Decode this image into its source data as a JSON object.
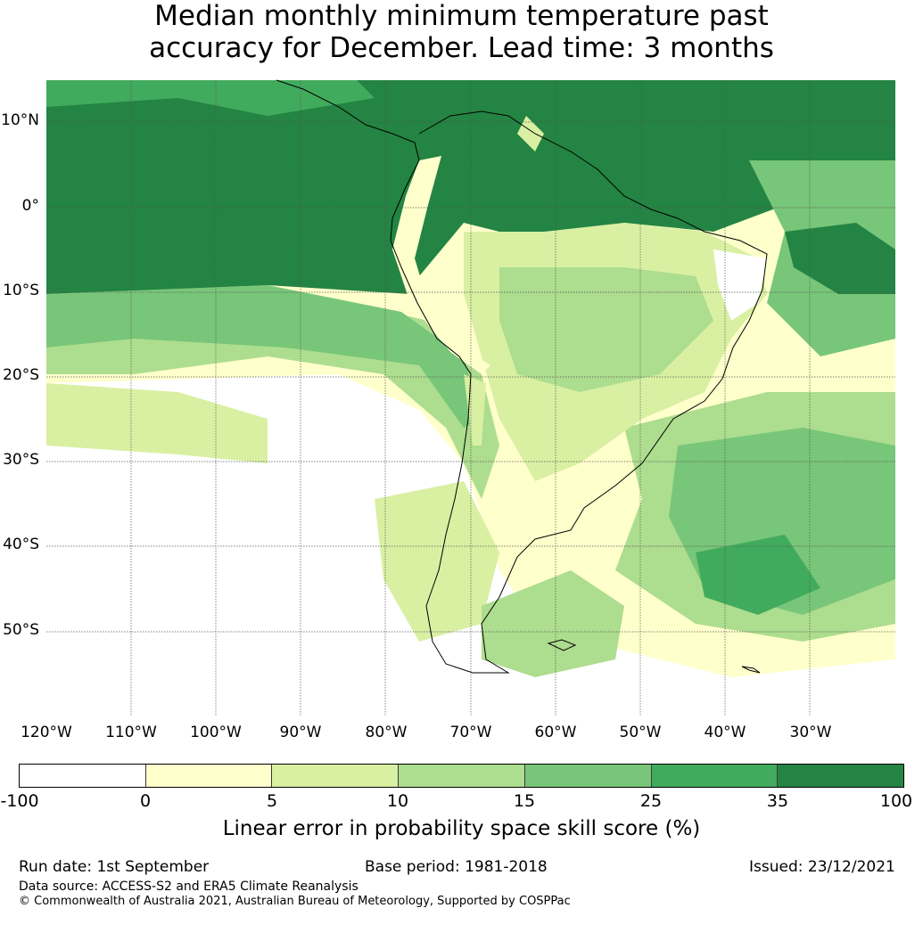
{
  "title": {
    "line1": "Median monthly minimum temperature past",
    "line2": "accuracy for December. Lead time: 3 months"
  },
  "map": {
    "lat_labels": [
      "10°N",
      "0°",
      "10°S",
      "20°S",
      "30°S",
      "40°S",
      "50°S"
    ],
    "lon_labels": [
      "120°W",
      "110°W",
      "100°W",
      "90°W",
      "80°W",
      "70°W",
      "60°W",
      "50°W",
      "40°W",
      "30°W"
    ],
    "colors": {
      "c0": "#ffffff",
      "c1": "#ffffcc",
      "c2": "#d9f0a3",
      "c3": "#addd8e",
      "c4": "#78c679",
      "c5": "#41ab5d",
      "c6": "#238443"
    }
  },
  "colorbar": {
    "ticks": [
      "-100",
      "0",
      "5",
      "10",
      "15",
      "25",
      "35",
      "100"
    ],
    "colors": [
      "#ffffff",
      "#ffffcc",
      "#d9f0a3",
      "#addd8e",
      "#78c679",
      "#41ab5d",
      "#238443"
    ],
    "label": "Linear error in probability space skill score (%)"
  },
  "footer": {
    "run_date": "Run date: 1st September",
    "base_period": "Base period: 1981-2018",
    "issued": "Issued: 23/12/2021",
    "data_source": "Data source: ACCESS-S2 and ERA5 Climate Reanalysis",
    "copyright": "© Commonwealth of Australia 2021, Australian Bureau of Meteorology, Supported by COSPPac"
  }
}
